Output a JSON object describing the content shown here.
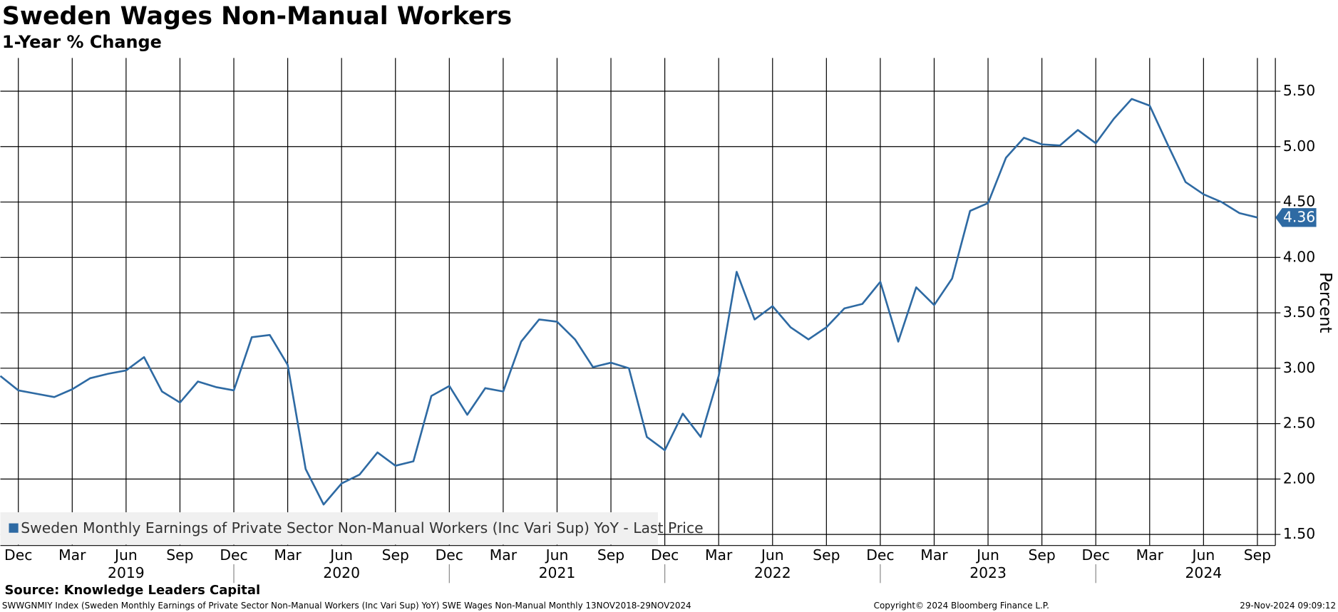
{
  "chart_data": {
    "type": "line",
    "title": "Sweden Wages Non-Manual Workers",
    "subtitle": "1-Year % Change",
    "y_axis_label": "Percent",
    "source": "Source: Knowledge Leaders Capital",
    "footnote": "SWWGNMIY Index (Sweden Monthly Earnings of Private Sector Non-Manual Workers (Inc Vari Sup) YoY) SWE Wages Non-Manual  Monthly 13NOV2018-29NOV2024",
    "copyright": "Copyright© 2024 Bloomberg Finance L.P.",
    "timestamp": "29-Nov-2024 09:09:12",
    "x": [
      "2018-11",
      "2018-12",
      "2019-01",
      "2019-02",
      "2019-03",
      "2019-04",
      "2019-05",
      "2019-06",
      "2019-07",
      "2019-08",
      "2019-09",
      "2019-10",
      "2019-11",
      "2019-12",
      "2020-01",
      "2020-02",
      "2020-03",
      "2020-04",
      "2020-05",
      "2020-06",
      "2020-07",
      "2020-08",
      "2020-09",
      "2020-10",
      "2020-11",
      "2020-12",
      "2021-01",
      "2021-02",
      "2021-03",
      "2021-04",
      "2021-05",
      "2021-06",
      "2021-07",
      "2021-08",
      "2021-09",
      "2021-10",
      "2021-11",
      "2021-12",
      "2022-01",
      "2022-02",
      "2022-03",
      "2022-04",
      "2022-05",
      "2022-06",
      "2022-07",
      "2022-08",
      "2022-09",
      "2022-10",
      "2022-11",
      "2022-12",
      "2023-01",
      "2023-02",
      "2023-03",
      "2023-04",
      "2023-05",
      "2023-06",
      "2023-07",
      "2023-08",
      "2023-09",
      "2023-10",
      "2023-11",
      "2023-12",
      "2024-01",
      "2024-02",
      "2024-03",
      "2024-04",
      "2024-05",
      "2024-06",
      "2024-07",
      "2024-08",
      "2024-09"
    ],
    "series": [
      {
        "name": "Sweden Monthly Earnings of Private Sector Non-Manual Workers (Inc Vari Sup) YoY - Last Price",
        "color": "#2e6aa3",
        "values": [
          2.93,
          2.8,
          2.77,
          2.74,
          2.81,
          2.91,
          2.95,
          2.98,
          3.1,
          2.79,
          2.69,
          2.88,
          2.83,
          2.8,
          3.28,
          3.3,
          3.03,
          2.09,
          1.77,
          1.96,
          2.04,
          2.24,
          2.12,
          2.16,
          2.75,
          2.84,
          2.58,
          2.82,
          2.79,
          3.24,
          3.44,
          3.42,
          3.26,
          3.01,
          3.05,
          3.0,
          2.38,
          2.26,
          2.59,
          2.38,
          2.93,
          3.87,
          3.44,
          3.56,
          3.37,
          3.26,
          3.37,
          3.54,
          3.58,
          3.78,
          3.24,
          3.73,
          3.57,
          3.81,
          4.42,
          4.49,
          4.9,
          5.08,
          5.02,
          5.01,
          5.15,
          5.03,
          5.25,
          5.43,
          5.37,
          5.02,
          4.68,
          4.57,
          4.5,
          4.4,
          4.36
        ]
      }
    ],
    "xlim": [
      "2018-11",
      "2024-10"
    ],
    "xticks": [
      {
        "value": "2018-12",
        "label": "Dec"
      },
      {
        "value": "2019-03",
        "label": "Mar"
      },
      {
        "value": "2019-06",
        "label": "Jun"
      },
      {
        "value": "2019-09",
        "label": "Sep"
      },
      {
        "value": "2019-12",
        "label": "Dec"
      },
      {
        "value": "2020-03",
        "label": "Mar"
      },
      {
        "value": "2020-06",
        "label": "Jun"
      },
      {
        "value": "2020-09",
        "label": "Sep"
      },
      {
        "value": "2020-12",
        "label": "Dec"
      },
      {
        "value": "2021-03",
        "label": "Mar"
      },
      {
        "value": "2021-06",
        "label": "Jun"
      },
      {
        "value": "2021-09",
        "label": "Sep"
      },
      {
        "value": "2021-12",
        "label": "Dec"
      },
      {
        "value": "2022-03",
        "label": "Mar"
      },
      {
        "value": "2022-06",
        "label": "Jun"
      },
      {
        "value": "2022-09",
        "label": "Sep"
      },
      {
        "value": "2022-12",
        "label": "Dec"
      },
      {
        "value": "2023-03",
        "label": "Mar"
      },
      {
        "value": "2023-06",
        "label": "Jun"
      },
      {
        "value": "2023-09",
        "label": "Sep"
      },
      {
        "value": "2023-12",
        "label": "Dec"
      },
      {
        "value": "2024-03",
        "label": "Mar"
      },
      {
        "value": "2024-06",
        "label": "Jun"
      },
      {
        "value": "2024-09",
        "label": "Sep"
      }
    ],
    "year_labels": [
      {
        "value": "2019-06",
        "label": "2019"
      },
      {
        "value": "2020-06",
        "label": "2020"
      },
      {
        "value": "2021-06",
        "label": "2021"
      },
      {
        "value": "2022-06",
        "label": "2022"
      },
      {
        "value": "2023-06",
        "label": "2023"
      },
      {
        "value": "2024-06",
        "label": "2024"
      }
    ],
    "ylim": [
      1.4,
      5.8
    ],
    "yticks": [
      {
        "value": 1.5,
        "label": "1.50"
      },
      {
        "value": 2,
        "label": "2.00"
      },
      {
        "value": 2.5,
        "label": "2.50"
      },
      {
        "value": 3,
        "label": "3.00"
      },
      {
        "value": 3.5,
        "label": "3.50"
      },
      {
        "value": 4,
        "label": "4.00"
      },
      {
        "value": 4.5,
        "label": "4.50"
      },
      {
        "value": 5,
        "label": "5.00"
      },
      {
        "value": 5.5,
        "label": "5.50"
      }
    ],
    "grid": true,
    "legend": "bottom-left"
  }
}
